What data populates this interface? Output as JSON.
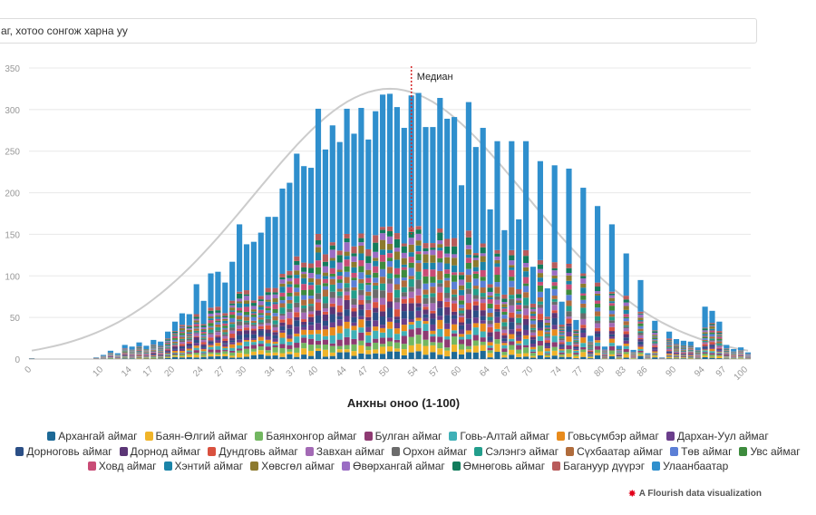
{
  "search": {
    "text": "аг, хотоо сонгож харна уу"
  },
  "chart_data": {
    "type": "bar",
    "stacked": true,
    "xlabel": "Анхны оноо (1-100)",
    "ylabel": "",
    "ylim": [
      0,
      350
    ],
    "yticks": [
      0,
      50,
      100,
      150,
      200,
      250,
      300,
      350
    ],
    "xtick_labels": [
      0,
      10,
      14,
      17,
      20,
      24,
      27,
      30,
      34,
      37,
      40,
      44,
      47,
      50,
      54,
      57,
      60,
      64,
      67,
      70,
      74,
      77,
      80,
      83,
      86,
      90,
      94,
      97,
      100
    ],
    "median": {
      "label": "Медиан",
      "score": 53
    },
    "x": [
      0,
      9,
      10,
      11,
      12,
      13,
      14,
      15,
      16,
      17,
      18,
      19,
      20,
      21,
      22,
      23,
      24,
      25,
      26,
      27,
      28,
      29,
      30,
      31,
      32,
      33,
      34,
      35,
      36,
      37,
      38,
      39,
      40,
      41,
      42,
      43,
      44,
      45,
      46,
      47,
      48,
      49,
      50,
      51,
      52,
      53,
      54,
      55,
      56,
      57,
      58,
      59,
      60,
      61,
      62,
      63,
      64,
      65,
      66,
      67,
      68,
      69,
      70,
      71,
      72,
      73,
      74,
      75,
      76,
      77,
      78,
      79,
      80,
      81,
      82,
      83,
      84,
      85,
      86,
      87,
      88,
      89,
      90,
      91,
      92,
      93,
      94,
      95,
      96,
      97,
      98,
      99,
      100
    ],
    "totals": [
      1,
      2,
      5,
      10,
      7,
      17,
      15,
      20,
      16,
      23,
      21,
      33,
      45,
      55,
      54,
      90,
      70,
      103,
      105,
      92,
      117,
      162,
      138,
      141,
      152,
      171,
      171,
      205,
      212,
      247,
      232,
      230,
      301,
      252,
      281,
      261,
      301,
      271,
      302,
      264,
      298,
      318,
      319,
      303,
      278,
      317,
      320,
      279,
      279,
      314,
      289,
      291,
      209,
      309,
      255,
      278,
      180,
      262,
      155,
      262,
      168,
      262,
      111,
      238,
      85,
      233,
      69,
      229,
      47,
      206,
      28,
      184,
      15,
      162,
      16,
      127,
      11,
      95,
      7,
      46,
      2,
      33,
      24,
      22,
      21,
      14,
      63,
      58,
      45,
      17,
      12,
      14,
      8
    ],
    "first_segment_index": 3,
    "series": [
      {
        "name": "Архангай аймаг",
        "color": "#1d6996"
      },
      {
        "name": "Баян-Өлгий аймаг",
        "color": "#f0b429"
      },
      {
        "name": "Баянхонгор аймаг",
        "color": "#73b761"
      },
      {
        "name": "Булган аймаг",
        "color": "#8e3a72"
      },
      {
        "name": "Говь-Алтай аймаг",
        "color": "#3fb0b7"
      },
      {
        "name": "Говьсүмбэр аймаг",
        "color": "#e88b1c"
      },
      {
        "name": "Дархан-Уул аймаг",
        "color": "#6b3e8c"
      },
      {
        "name": "Дорноговь аймаг",
        "color": "#2b4f86"
      },
      {
        "name": "Дорнод аймаг",
        "color": "#5b3676"
      },
      {
        "name": "Дундговь аймаг",
        "color": "#d9513f"
      },
      {
        "name": "Завхан аймаг",
        "color": "#a36ab5"
      },
      {
        "name": "Орхон аймаг",
        "color": "#6b6b6b"
      },
      {
        "name": "Сэлэнгэ аймаг",
        "color": "#239e8c"
      },
      {
        "name": "Сүхбаатар аймаг",
        "color": "#b06c3c"
      },
      {
        "name": "Төв аймаг",
        "color": "#5b7fd6"
      },
      {
        "name": "Увс аймаг",
        "color": "#3d8b3d"
      },
      {
        "name": "Ховд аймаг",
        "color": "#c94c76"
      },
      {
        "name": "Хэнтий аймаг",
        "color": "#1b84a8"
      },
      {
        "name": "Хөвсгөл аймаг",
        "color": "#8c7a2e"
      },
      {
        "name": "Өвөрхангай аймаг",
        "color": "#9a6cc4"
      },
      {
        "name": "Өмнөговь аймаг",
        "color": "#127c5c"
      },
      {
        "name": "Багануур дүүрэг",
        "color": "#b85b5b"
      },
      {
        "name": "Улаанбаатар",
        "color": "#2f8fcd"
      }
    ]
  },
  "legend_rows": [
    [
      0,
      1,
      2,
      3,
      4,
      5,
      6
    ],
    [
      7,
      8,
      9,
      10,
      11,
      12,
      13,
      14,
      15
    ],
    [
      16,
      17,
      18,
      19,
      20,
      21,
      22
    ]
  ],
  "footer": {
    "credit": "A Flourish data visualization"
  }
}
